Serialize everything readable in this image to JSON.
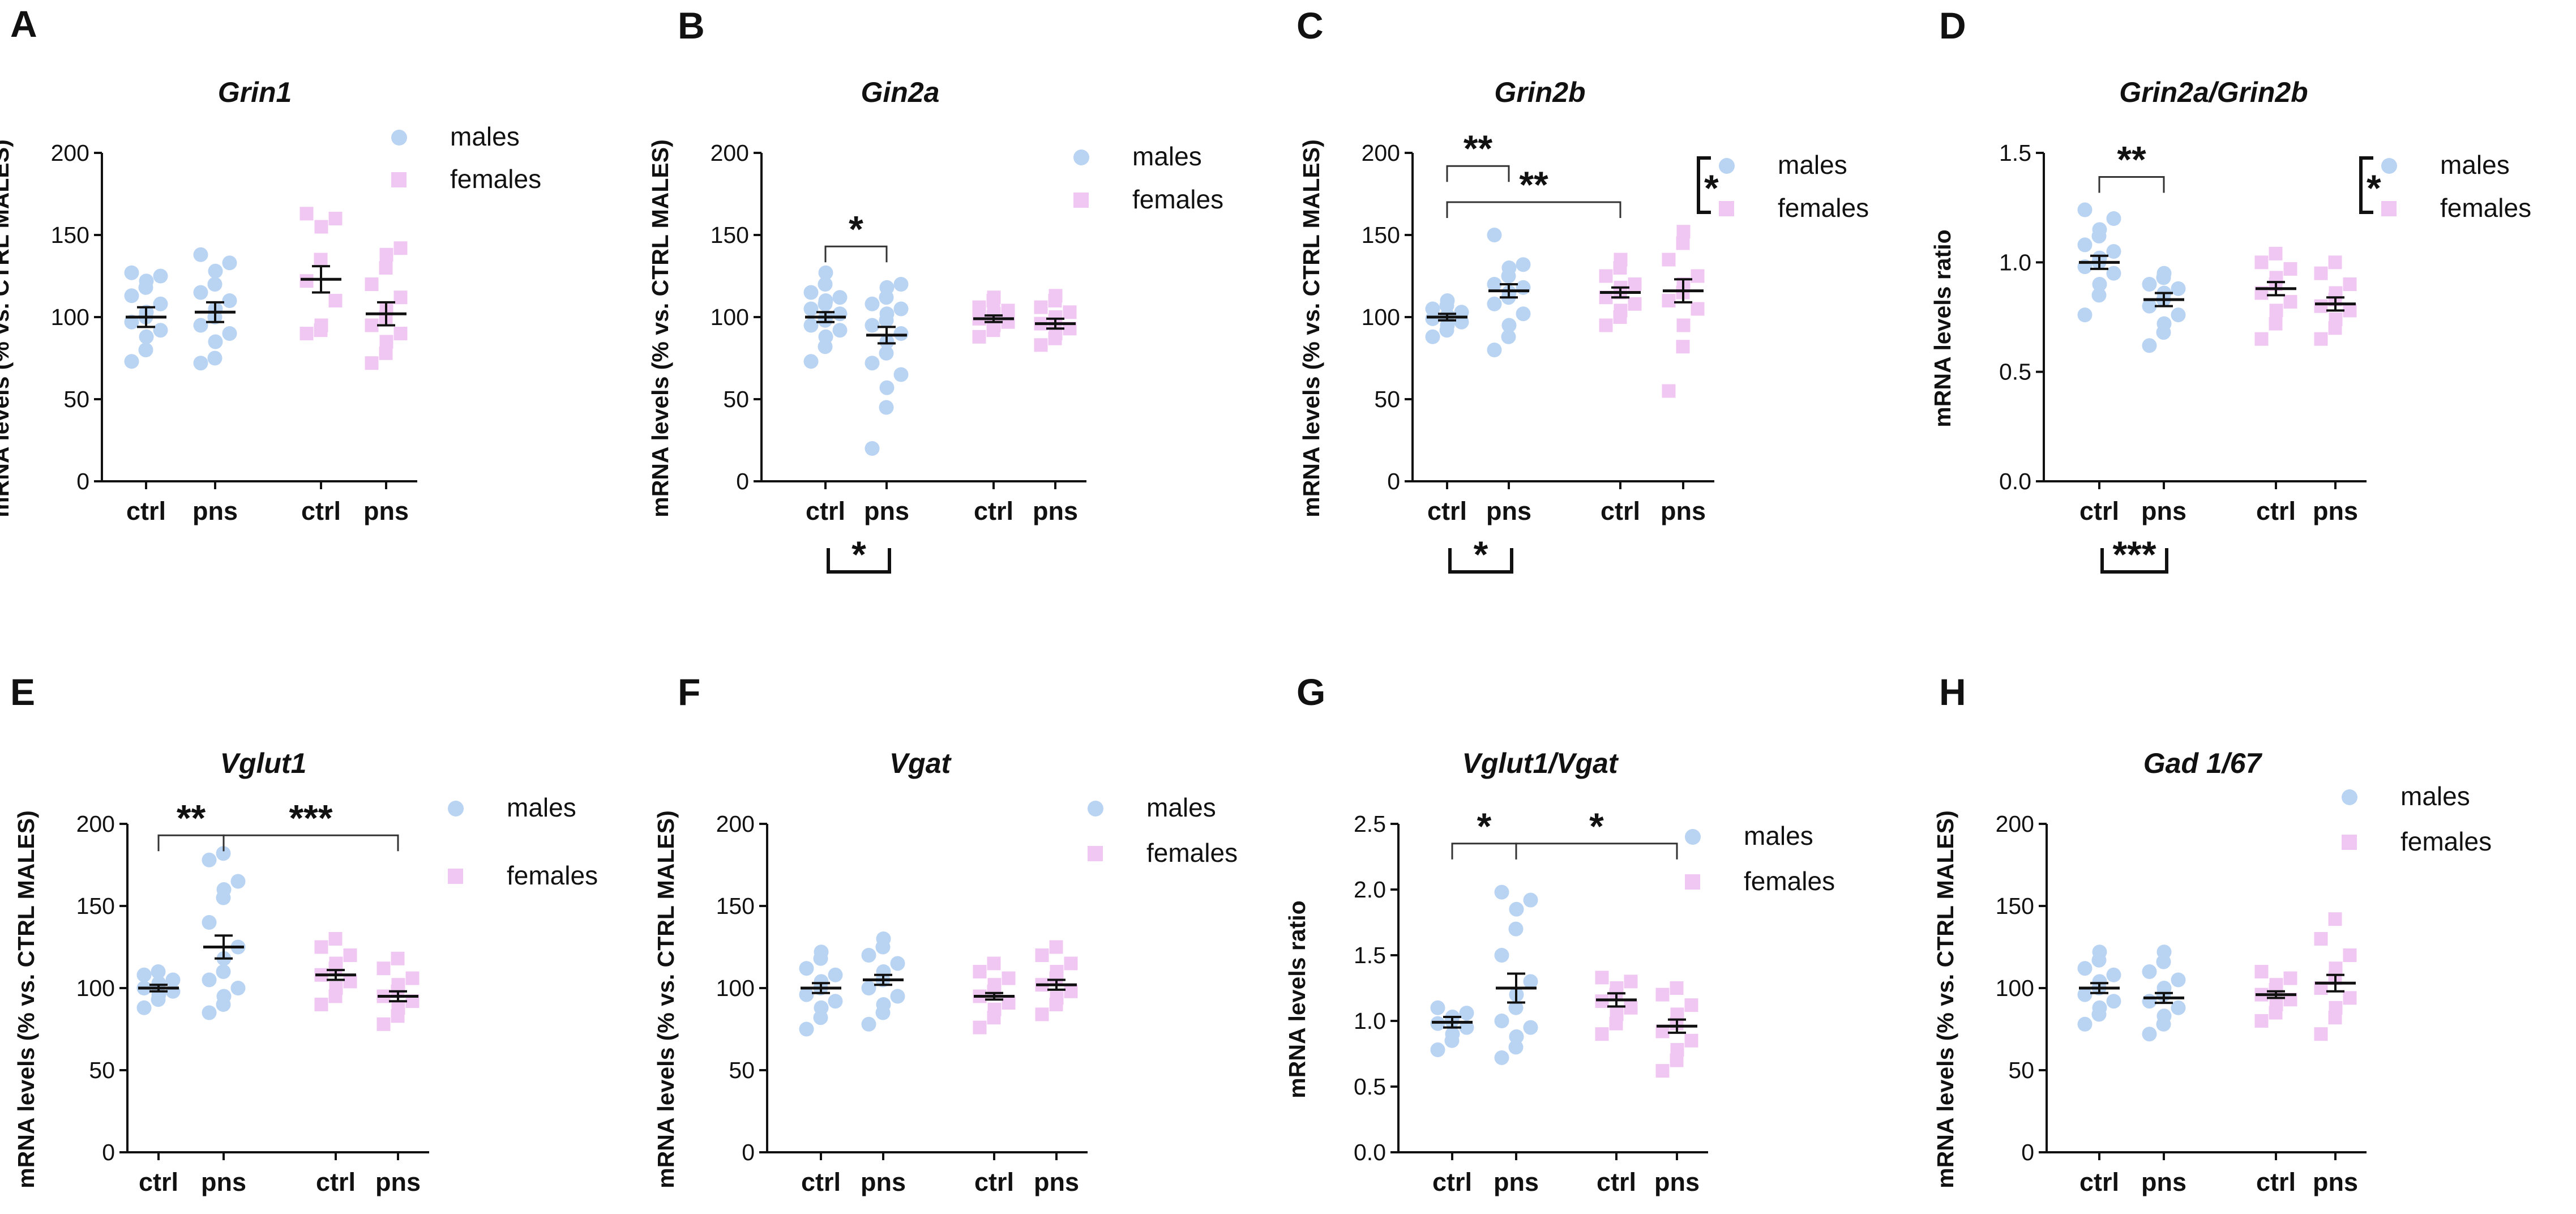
{
  "colors": {
    "males": "#b9d3f3",
    "females": "#f0c7f2",
    "axis": "#111111"
  },
  "legend_labels": {
    "males": "males",
    "females": "females"
  },
  "chart_data": [
    {
      "panel": "A",
      "type": "scatter",
      "title": "Grin1",
      "ylabel": "mRNA levels (% vs. CTRL MALES)",
      "ylim": [
        0,
        200
      ],
      "yticks": [
        0,
        50,
        100,
        150,
        200
      ],
      "categories": [
        "ctrl",
        "pns",
        "ctrl",
        "pns"
      ],
      "legend": {
        "labels": [
          "males",
          "females"
        ],
        "placement": "top-right",
        "bracket": null
      },
      "series": [
        {
          "name": "males",
          "group": "ctrl",
          "mean": 100,
          "sem": 6,
          "points": [
            73,
            80,
            88,
            92,
            97,
            100,
            103,
            108,
            113,
            118,
            122,
            125,
            127
          ]
        },
        {
          "name": "males",
          "group": "pns",
          "mean": 103,
          "sem": 6,
          "points": [
            72,
            75,
            85,
            90,
            95,
            100,
            105,
            110,
            115,
            120,
            128,
            133,
            138
          ]
        },
        {
          "name": "females",
          "group": "ctrl",
          "mean": 123,
          "sem": 8,
          "points": [
            90,
            92,
            95,
            110,
            122,
            135,
            155,
            160,
            163
          ]
        },
        {
          "name": "females",
          "group": "pns",
          "mean": 102,
          "sem": 7,
          "points": [
            72,
            78,
            85,
            90,
            95,
            100,
            105,
            112,
            120,
            130,
            138,
            142
          ]
        }
      ],
      "comparisons": [],
      "bottom_annotations": []
    },
    {
      "panel": "B",
      "type": "scatter",
      "title": "Gin2a",
      "ylabel": "mRNA levels (% vs. CTRL MALES)",
      "ylim": [
        0,
        200
      ],
      "yticks": [
        0,
        50,
        100,
        150,
        200
      ],
      "categories": [
        "ctrl",
        "pns",
        "ctrl",
        "pns"
      ],
      "legend": {
        "labels": [
          "males",
          "females"
        ],
        "placement": "top-right",
        "bracket": null
      },
      "series": [
        {
          "name": "males",
          "group": "ctrl",
          "mean": 100,
          "sem": 3,
          "points": [
            73,
            82,
            88,
            92,
            95,
            98,
            100,
            102,
            105,
            108,
            110,
            112,
            115,
            120,
            127
          ]
        },
        {
          "name": "males",
          "group": "pns",
          "mean": 89,
          "sem": 5,
          "points": [
            20,
            45,
            57,
            65,
            72,
            78,
            85,
            90,
            95,
            98,
            102,
            105,
            108,
            112,
            118,
            120
          ]
        },
        {
          "name": "females",
          "group": "ctrl",
          "mean": 99,
          "sem": 2,
          "points": [
            88,
            92,
            95,
            97,
            99,
            100,
            102,
            104,
            106,
            110,
            112
          ]
        },
        {
          "name": "females",
          "group": "pns",
          "mean": 96,
          "sem": 3,
          "points": [
            83,
            87,
            90,
            93,
            96,
            98,
            100,
            103,
            106,
            110,
            113
          ]
        }
      ],
      "comparisons": [
        {
          "from": 0,
          "to": 1,
          "y": 143,
          "label": "*"
        }
      ],
      "bottom_annotations": [
        {
          "from": 0,
          "to": 1,
          "label": "*"
        }
      ]
    },
    {
      "panel": "C",
      "type": "scatter",
      "title": "Grin2b",
      "ylabel": "mRNA levels (% vs. CTRL MALES)",
      "ylim": [
        0,
        200
      ],
      "yticks": [
        0,
        50,
        100,
        150,
        200
      ],
      "categories": [
        "ctrl",
        "pns",
        "ctrl",
        "pns"
      ],
      "legend": {
        "labels": [
          "males",
          "females"
        ],
        "placement": "top-right",
        "bracket": "*"
      },
      "series": [
        {
          "name": "males",
          "group": "ctrl",
          "mean": 100,
          "sem": 2,
          "points": [
            88,
            92,
            95,
            97,
            99,
            100,
            101,
            103,
            105,
            107,
            110
          ]
        },
        {
          "name": "males",
          "group": "pns",
          "mean": 116,
          "sem": 4,
          "points": [
            80,
            88,
            95,
            102,
            108,
            112,
            115,
            118,
            120,
            125,
            130,
            132,
            150
          ]
        },
        {
          "name": "females",
          "group": "ctrl",
          "mean": 115,
          "sem": 3,
          "points": [
            95,
            100,
            104,
            108,
            112,
            115,
            118,
            120,
            125,
            130,
            135
          ]
        },
        {
          "name": "females",
          "group": "pns",
          "mean": 116,
          "sem": 7,
          "points": [
            55,
            82,
            95,
            105,
            110,
            115,
            120,
            125,
            135,
            145,
            152
          ]
        }
      ],
      "comparisons": [
        {
          "from": 0,
          "to": 1,
          "y": 192,
          "label": "**"
        },
        {
          "from": 0,
          "to": 2,
          "y": 170,
          "label": "**"
        }
      ],
      "bottom_annotations": [
        {
          "from": 0,
          "to": 1,
          "label": "*"
        }
      ]
    },
    {
      "panel": "D",
      "type": "scatter",
      "title": "Grin2a/Grin2b",
      "ylabel": "mRNA levels ratio",
      "ylim": [
        0,
        1.5
      ],
      "yticks": [
        0.0,
        0.5,
        1.0,
        1.5
      ],
      "categories": [
        "ctrl",
        "pns",
        "ctrl",
        "pns"
      ],
      "legend": {
        "labels": [
          "males",
          "females"
        ],
        "placement": "top-right",
        "bracket": "*"
      },
      "series": [
        {
          "name": "males",
          "group": "ctrl",
          "mean": 1.0,
          "sem": 0.03,
          "points": [
            0.76,
            0.85,
            0.9,
            0.95,
            0.98,
            1.0,
            1.02,
            1.05,
            1.08,
            1.12,
            1.15,
            1.2,
            1.24
          ]
        },
        {
          "name": "males",
          "group": "pns",
          "mean": 0.83,
          "sem": 0.03,
          "points": [
            0.62,
            0.68,
            0.72,
            0.76,
            0.8,
            0.83,
            0.86,
            0.88,
            0.9,
            0.93,
            0.95
          ]
        },
        {
          "name": "females",
          "group": "ctrl",
          "mean": 0.88,
          "sem": 0.03,
          "points": [
            0.65,
            0.72,
            0.78,
            0.82,
            0.86,
            0.9,
            0.93,
            0.97,
            1.0,
            1.04
          ]
        },
        {
          "name": "females",
          "group": "pns",
          "mean": 0.81,
          "sem": 0.03,
          "points": [
            0.65,
            0.7,
            0.74,
            0.78,
            0.8,
            0.83,
            0.86,
            0.9,
            0.95,
            1.0
          ]
        }
      ],
      "comparisons": [
        {
          "from": 0,
          "to": 1,
          "y": 1.39,
          "label": "**"
        }
      ],
      "bottom_annotations": [
        {
          "from": 0,
          "to": 1,
          "label": "***"
        }
      ]
    },
    {
      "panel": "E",
      "type": "scatter",
      "title": "Vglut1",
      "ylabel": "mRNA levels (% vs. CTRL MALES)",
      "ylim": [
        0,
        200
      ],
      "yticks": [
        0,
        50,
        100,
        150,
        200
      ],
      "categories": [
        "ctrl",
        "pns",
        "ctrl",
        "pns"
      ],
      "legend": {
        "labels": [
          "males",
          "females"
        ],
        "placement": "top-right",
        "bracket": null
      },
      "series": [
        {
          "name": "males",
          "group": "ctrl",
          "mean": 100,
          "sem": 2,
          "points": [
            88,
            93,
            96,
            98,
            100,
            101,
            103,
            105,
            108,
            110
          ]
        },
        {
          "name": "males",
          "group": "pns",
          "mean": 125,
          "sem": 7,
          "points": [
            85,
            90,
            95,
            100,
            105,
            110,
            118,
            125,
            140,
            155,
            160,
            165,
            178,
            182
          ]
        },
        {
          "name": "females",
          "group": "ctrl",
          "mean": 108,
          "sem": 3,
          "points": [
            90,
            95,
            100,
            104,
            108,
            112,
            115,
            120,
            125,
            130
          ]
        },
        {
          "name": "females",
          "group": "pns",
          "mean": 95,
          "sem": 3,
          "points": [
            78,
            83,
            88,
            92,
            95,
            98,
            102,
            106,
            112,
            118
          ]
        }
      ],
      "comparisons": [
        {
          "from": 0,
          "to": 1,
          "y": 193,
          "label": "**"
        },
        {
          "from": 1,
          "to": 3,
          "y": 193,
          "label": "***"
        }
      ],
      "bottom_annotations": []
    },
    {
      "panel": "F",
      "type": "scatter",
      "title": "Vgat",
      "ylabel": "mRNA levels (% vs. CTRL MALES)",
      "ylim": [
        0,
        200
      ],
      "yticks": [
        0,
        50,
        100,
        150,
        200
      ],
      "categories": [
        "ctrl",
        "pns",
        "ctrl",
        "pns"
      ],
      "legend": {
        "labels": [
          "males",
          "females"
        ],
        "placement": "top-right",
        "bracket": null
      },
      "series": [
        {
          "name": "males",
          "group": "ctrl",
          "mean": 100,
          "sem": 3,
          "points": [
            75,
            82,
            88,
            92,
            96,
            100,
            104,
            108,
            112,
            118,
            122
          ]
        },
        {
          "name": "males",
          "group": "pns",
          "mean": 105,
          "sem": 3,
          "points": [
            78,
            85,
            90,
            95,
            100,
            105,
            110,
            115,
            120,
            125,
            130
          ]
        },
        {
          "name": "females",
          "group": "ctrl",
          "mean": 95,
          "sem": 2,
          "points": [
            76,
            82,
            87,
            91,
            95,
            98,
            102,
            106,
            110,
            115
          ]
        },
        {
          "name": "females",
          "group": "pns",
          "mean": 102,
          "sem": 3,
          "points": [
            84,
            90,
            94,
            98,
            102,
            106,
            110,
            115,
            120,
            125
          ]
        }
      ],
      "comparisons": [],
      "bottom_annotations": []
    },
    {
      "panel": "G",
      "type": "scatter",
      "title": "Vglut1/Vgat",
      "ylabel": "mRNA levels ratio",
      "ylim": [
        0,
        2.5
      ],
      "yticks": [
        0.0,
        0.5,
        1.0,
        1.5,
        2.0,
        2.5
      ],
      "categories": [
        "ctrl",
        "pns",
        "ctrl",
        "pns"
      ],
      "legend": {
        "labels": [
          "males",
          "females"
        ],
        "placement": "top-right",
        "bracket": null
      },
      "series": [
        {
          "name": "males",
          "group": "ctrl",
          "mean": 0.99,
          "sem": 0.04,
          "points": [
            0.78,
            0.85,
            0.9,
            0.95,
            0.98,
            1.0,
            1.03,
            1.06,
            1.1
          ]
        },
        {
          "name": "males",
          "group": "pns",
          "mean": 1.25,
          "sem": 0.11,
          "points": [
            0.72,
            0.8,
            0.88,
            0.95,
            1.0,
            1.1,
            1.2,
            1.3,
            1.5,
            1.7,
            1.85,
            1.92,
            1.98
          ]
        },
        {
          "name": "females",
          "group": "ctrl",
          "mean": 1.16,
          "sem": 0.05,
          "points": [
            0.9,
            0.98,
            1.05,
            1.1,
            1.15,
            1.2,
            1.25,
            1.3,
            1.33
          ]
        },
        {
          "name": "females",
          "group": "pns",
          "mean": 0.96,
          "sem": 0.05,
          "points": [
            0.62,
            0.7,
            0.78,
            0.85,
            0.92,
            0.98,
            1.05,
            1.12,
            1.2,
            1.25
          ]
        }
      ],
      "comparisons": [
        {
          "from": 0,
          "to": 1,
          "y": 2.35,
          "label": "*"
        },
        {
          "from": 1,
          "to": 3,
          "y": 2.35,
          "label": "*"
        }
      ],
      "bottom_annotations": []
    },
    {
      "panel": "H",
      "type": "scatter",
      "title": "Gad 1/67",
      "ylabel": "mRNA levels (% vs. CTRL MALES)",
      "ylim": [
        0,
        200
      ],
      "yticks": [
        0,
        50,
        100,
        150,
        200
      ],
      "categories": [
        "ctrl",
        "pns",
        "ctrl",
        "pns"
      ],
      "legend": {
        "labels": [
          "males",
          "females"
        ],
        "placement": "top-right",
        "bracket": null
      },
      "series": [
        {
          "name": "males",
          "group": "ctrl",
          "mean": 100,
          "sem": 3,
          "points": [
            78,
            84,
            88,
            92,
            96,
            100,
            104,
            108,
            112,
            117,
            122
          ]
        },
        {
          "name": "males",
          "group": "pns",
          "mean": 94,
          "sem": 3,
          "points": [
            72,
            78,
            83,
            88,
            92,
            96,
            100,
            105,
            110,
            116,
            122
          ]
        },
        {
          "name": "females",
          "group": "ctrl",
          "mean": 96,
          "sem": 2,
          "points": [
            80,
            85,
            90,
            93,
            96,
            99,
            102,
            106,
            110
          ]
        },
        {
          "name": "females",
          "group": "pns",
          "mean": 103,
          "sem": 5,
          "points": [
            72,
            82,
            88,
            94,
            100,
            106,
            112,
            120,
            130,
            142
          ]
        }
      ],
      "comparisons": [],
      "bottom_annotations": []
    }
  ]
}
